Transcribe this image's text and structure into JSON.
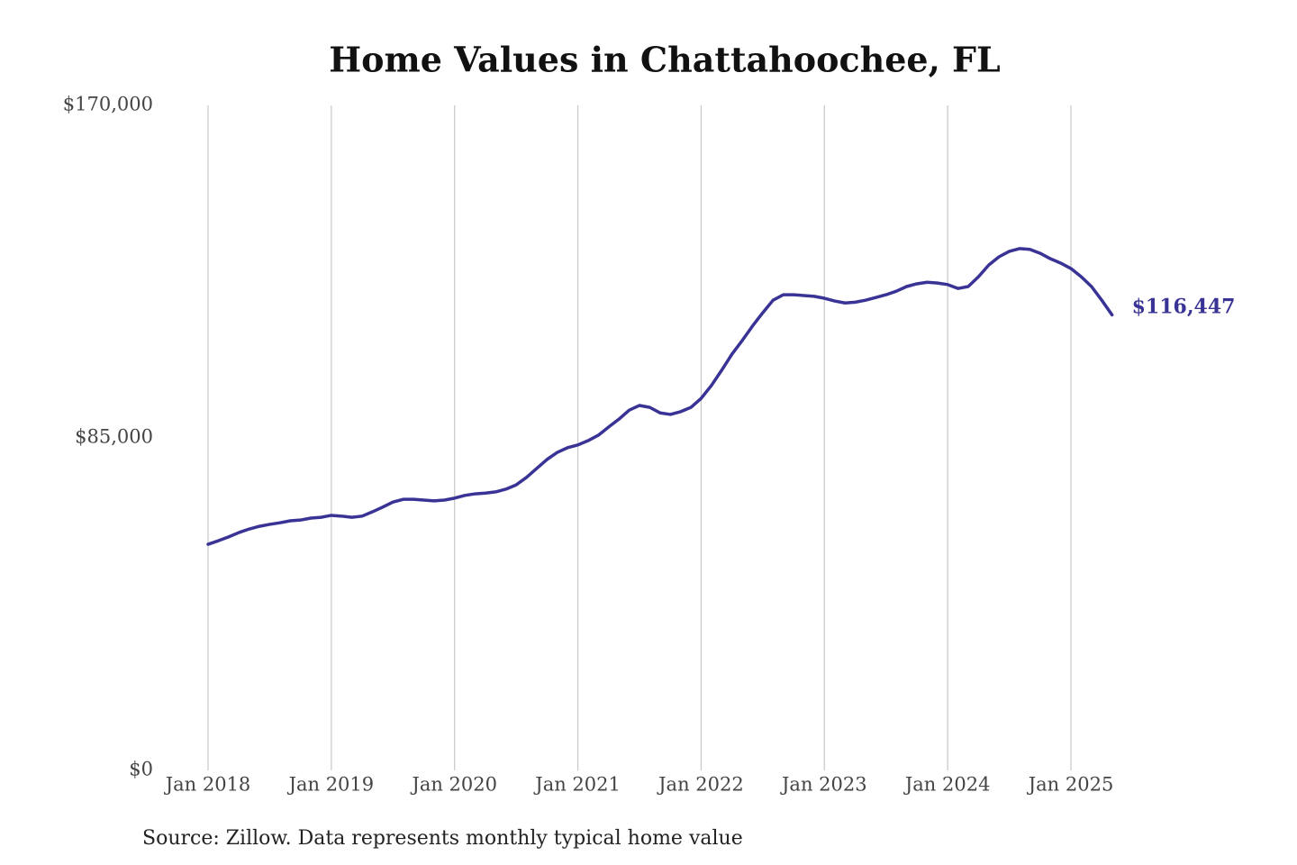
{
  "chart_data": {
    "type": "line",
    "title": "Home Values in Chattahoochee, FL",
    "source": "Source: Zillow. Data represents monthly typical home value",
    "x": [
      "2018-01",
      "2018-02",
      "2018-03",
      "2018-04",
      "2018-05",
      "2018-06",
      "2018-07",
      "2018-08",
      "2018-09",
      "2018-10",
      "2018-11",
      "2018-12",
      "2019-01",
      "2019-02",
      "2019-03",
      "2019-04",
      "2019-05",
      "2019-06",
      "2019-07",
      "2019-08",
      "2019-09",
      "2019-10",
      "2019-11",
      "2019-12",
      "2020-01",
      "2020-02",
      "2020-03",
      "2020-04",
      "2020-05",
      "2020-06",
      "2020-07",
      "2020-08",
      "2020-09",
      "2020-10",
      "2020-11",
      "2020-12",
      "2021-01",
      "2021-02",
      "2021-03",
      "2021-04",
      "2021-05",
      "2021-06",
      "2021-07",
      "2021-08",
      "2021-09",
      "2021-10",
      "2021-11",
      "2021-12",
      "2022-01",
      "2022-02",
      "2022-03",
      "2022-04",
      "2022-05",
      "2022-06",
      "2022-07",
      "2022-08",
      "2022-09",
      "2022-10",
      "2022-11",
      "2022-12",
      "2023-01",
      "2023-02",
      "2023-03",
      "2023-04",
      "2023-05",
      "2023-06",
      "2023-07",
      "2023-08",
      "2023-09",
      "2023-10",
      "2023-11",
      "2023-12",
      "2024-01",
      "2024-02",
      "2024-03",
      "2024-04",
      "2024-05",
      "2024-06",
      "2024-07",
      "2024-08",
      "2024-09",
      "2024-10",
      "2024-11",
      "2024-12",
      "2025-01",
      "2025-02",
      "2025-03",
      "2025-04",
      "2025-05"
    ],
    "series": [
      {
        "name": "Chattahoochee, FL",
        "color": "#3a3396",
        "values": [
          57800,
          58700,
          59700,
          60800,
          61700,
          62400,
          62900,
          63300,
          63800,
          64000,
          64500,
          64700,
          65200,
          65000,
          64700,
          65000,
          66100,
          67300,
          68600,
          69300,
          69300,
          69100,
          68900,
          69100,
          69600,
          70300,
          70700,
          70900,
          71200,
          71900,
          73000,
          74900,
          77200,
          79500,
          81300,
          82500,
          83200,
          84300,
          85700,
          87800,
          89800,
          92100,
          93300,
          92800,
          91400,
          91000,
          91700,
          92800,
          95100,
          98400,
          102300,
          106400,
          109900,
          113600,
          117000,
          120200,
          121600,
          121600,
          121400,
          121200,
          120700,
          120000,
          119500,
          119700,
          120200,
          120900,
          121600,
          122500,
          123700,
          124400,
          124800,
          124600,
          124200,
          123200,
          123700,
          126200,
          129200,
          131300,
          132700,
          133400,
          133200,
          132200,
          130800,
          129700,
          128300,
          126200,
          123700,
          120200,
          116447
        ],
        "value_labels": [
          null,
          null,
          null,
          null,
          null,
          null,
          null,
          null,
          null,
          null,
          null,
          null,
          null,
          null,
          null,
          null,
          null,
          null,
          null,
          null,
          null,
          null,
          null,
          null,
          null,
          null,
          null,
          null,
          null,
          null,
          null,
          null,
          null,
          null,
          null,
          null,
          null,
          null,
          null,
          null,
          null,
          null,
          null,
          null,
          null,
          null,
          null,
          null,
          null,
          null,
          null,
          null,
          null,
          null,
          null,
          null,
          null,
          null,
          null,
          null,
          null,
          null,
          null,
          null,
          null,
          null,
          null,
          null,
          null,
          null,
          null,
          null,
          null,
          null,
          null,
          null,
          null,
          null,
          null,
          null,
          null,
          null,
          null,
          null,
          null,
          null,
          null,
          null,
          "$116,447"
        ]
      }
    ],
    "ylim": [
      0,
      170000
    ],
    "yticks": [
      {
        "value": 0,
        "label": "$0"
      },
      {
        "value": 85000,
        "label": "$85,000"
      },
      {
        "value": 170000,
        "label": "$170,000"
      }
    ],
    "xticks": [
      {
        "value": "2018-01",
        "label": "Jan 2018"
      },
      {
        "value": "2019-01",
        "label": "Jan 2019"
      },
      {
        "value": "2020-01",
        "label": "Jan 2020"
      },
      {
        "value": "2021-01",
        "label": "Jan 2021"
      },
      {
        "value": "2022-01",
        "label": "Jan 2022"
      },
      {
        "value": "2023-01",
        "label": "Jan 2023"
      },
      {
        "value": "2024-01",
        "label": "Jan 2024"
      },
      {
        "value": "2025-01",
        "label": "Jan 2025"
      }
    ],
    "grid": "x"
  }
}
